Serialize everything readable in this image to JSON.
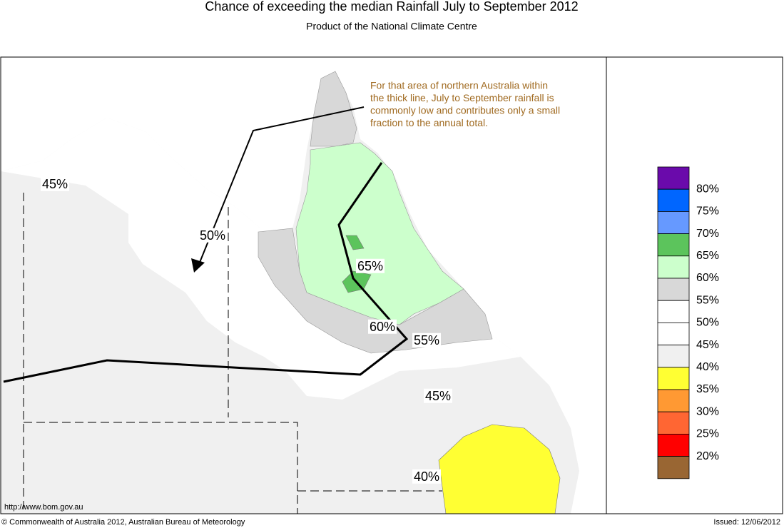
{
  "header": {
    "title": "Chance of exceeding the median Rainfall July to September 2012",
    "subtitle": "Product of the National Climate Centre"
  },
  "map": {
    "note": [
      "For that area of northern Australia within",
      "the thick line, July to September rainfall is",
      "commonly low and contributes only a small",
      "fraction to the annual total."
    ],
    "contour_labels": [
      "45%",
      "50%",
      "65%",
      "60%",
      "55%",
      "45%",
      "40%"
    ]
  },
  "legend": {
    "colors": [
      "#6a0aab",
      "#0066ff",
      "#6699ff",
      "#5cc45c",
      "#ccffcc",
      "#d8d8d8",
      "#ffffff",
      "#ffffff",
      "#f0f0f0",
      "#ffff33",
      "#ff9933",
      "#ff6633",
      "#ff0000",
      "#996633"
    ],
    "labels": [
      "80%",
      "75%",
      "70%",
      "65%",
      "60%",
      "55%",
      "50%",
      "45%",
      "40%",
      "35%",
      "30%",
      "25%",
      "20%"
    ]
  },
  "footer": {
    "url": "http://www.bom.gov.au",
    "copyright": "© Commonwealth of Australia 2012, Australian Bureau of Meteorology",
    "issued": "Issued: 12/06/2012"
  }
}
